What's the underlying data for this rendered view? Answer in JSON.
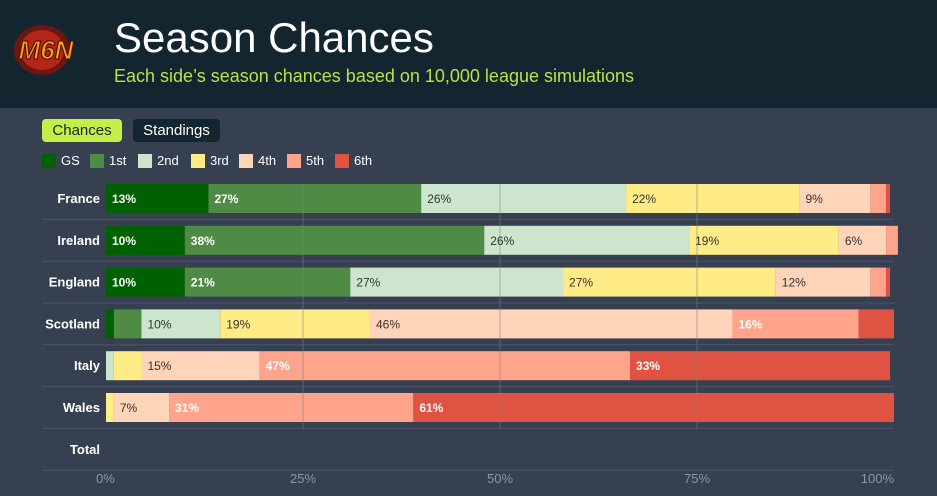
{
  "header": {
    "logo_text": "M6N",
    "title": "Season Chances",
    "subtitle": "Each side’s season chances based on 10,000 league simulations"
  },
  "tabs": [
    {
      "label": "Chances",
      "active": true
    },
    {
      "label": "Standings",
      "active": false
    }
  ],
  "colors": {
    "background": "#364050",
    "header_background": "#13252f",
    "subtitle": "#b6e34a",
    "accent": "#c4ef48"
  },
  "chart_data": {
    "type": "bar",
    "orientation": "horizontal",
    "stacked": true,
    "categories": [
      "France",
      "Ireland",
      "England",
      "Scotland",
      "Italy",
      "Wales",
      "Total"
    ],
    "series": [
      {
        "name": "GS",
        "color": "#006100",
        "values": [
          13,
          10,
          10,
          1,
          0,
          0,
          0
        ]
      },
      {
        "name": "1st",
        "color": "#508b46",
        "values": [
          27,
          38,
          21,
          3.5,
          0,
          0,
          0
        ]
      },
      {
        "name": "2nd",
        "color": "#cce5cc",
        "values": [
          26,
          26,
          27,
          10,
          1,
          0,
          0
        ]
      },
      {
        "name": "3rd",
        "color": "#ffec87",
        "values": [
          22,
          19,
          27,
          19,
          3.5,
          1,
          0
        ]
      },
      {
        "name": "4th",
        "color": "#ffd4b8",
        "values": [
          9,
          6,
          12,
          46,
          15,
          7,
          0
        ]
      },
      {
        "name": "5th",
        "color": "#fea48b",
        "values": [
          2,
          1.5,
          2,
          16,
          47,
          31,
          0
        ]
      },
      {
        "name": "6th",
        "color": "#e05342",
        "values": [
          0.5,
          0,
          0.5,
          4.5,
          33,
          61,
          0
        ]
      }
    ],
    "data_labels": [
      [
        "13%",
        "27%",
        "26%",
        "22%",
        "9%",
        "",
        ""
      ],
      [
        "10%",
        "38%",
        "26%",
        "19%",
        "6%",
        "",
        ""
      ],
      [
        "10%",
        "21%",
        "27%",
        "27%",
        "12%",
        "",
        ""
      ],
      [
        "",
        "",
        "10%",
        "19%",
        "46%",
        "16%",
        ""
      ],
      [
        "",
        "",
        "",
        "",
        "15%",
        "47%",
        "33%"
      ],
      [
        "",
        "",
        "",
        "",
        "7%",
        "31%",
        "61%"
      ],
      [
        "",
        "",
        "",
        "",
        "",
        "",
        ""
      ]
    ],
    "x_ticks": [
      "0%",
      "25%",
      "50%",
      "75%",
      "100%"
    ],
    "xlim": [
      0,
      100
    ],
    "legend_position": "top-left",
    "grid": true
  }
}
